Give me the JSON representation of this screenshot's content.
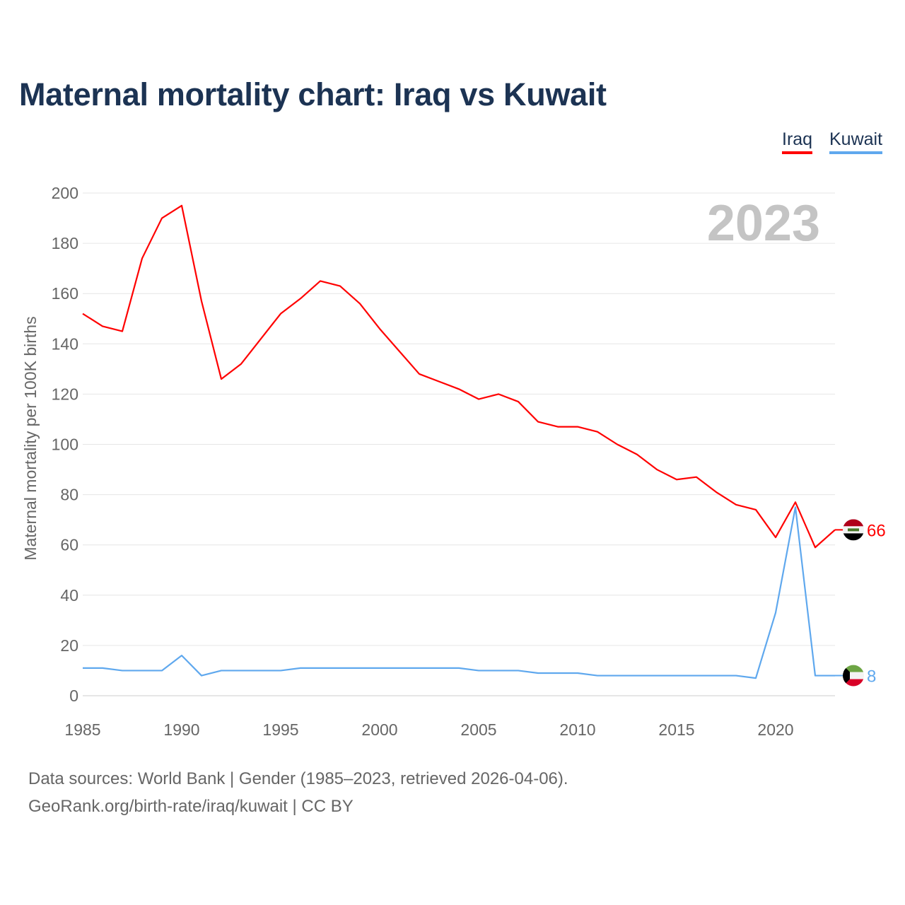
{
  "title": "Maternal mortality chart: Iraq vs Kuwait",
  "footer": {
    "source": "Data sources: World Bank | Gender (1985–2023, retrieved 2026-04-06).",
    "credit": "GeoRank.org/birth-rate/iraq/kuwait | CC BY"
  },
  "chart_data": {
    "type": "line",
    "title": "Maternal mortality chart: Iraq vs Kuwait",
    "year_label": "2023",
    "xlabel": "",
    "ylabel": "Maternal mortality per 100K births",
    "xlim": [
      1985,
      2023
    ],
    "ylim": [
      0,
      200
    ],
    "xticks": [
      "1985",
      "1990",
      "1995",
      "2000",
      "2005",
      "2010",
      "2015",
      "2020"
    ],
    "yticks": [
      "0",
      "20",
      "40",
      "60",
      "80",
      "100",
      "120",
      "140",
      "160",
      "180",
      "200"
    ],
    "grid": true,
    "legend_position": "top-right",
    "x": [
      1985,
      1986,
      1987,
      1988,
      1989,
      1990,
      1991,
      1992,
      1993,
      1994,
      1995,
      1996,
      1997,
      1998,
      1999,
      2000,
      2001,
      2002,
      2003,
      2004,
      2005,
      2006,
      2007,
      2008,
      2009,
      2010,
      2011,
      2012,
      2013,
      2014,
      2015,
      2016,
      2017,
      2018,
      2019,
      2020,
      2021,
      2022,
      2023
    ],
    "series": [
      {
        "name": "Iraq",
        "color": "#ff0000",
        "end_label": "66",
        "flag": "iraq-flag",
        "values": [
          152,
          147,
          145,
          174,
          190,
          195,
          157,
          126,
          132,
          142,
          152,
          158,
          165,
          163,
          156,
          146,
          137,
          128,
          125,
          122,
          118,
          120,
          117,
          109,
          107,
          107,
          105,
          100,
          96,
          90,
          86,
          87,
          81,
          76,
          74,
          63,
          77,
          59,
          66
        ]
      },
      {
        "name": "Kuwait",
        "color": "#5fa8ee",
        "end_label": "8",
        "flag": "kuwait-flag",
        "values": [
          11,
          11,
          10,
          10,
          10,
          16,
          8,
          10,
          10,
          10,
          10,
          11,
          11,
          11,
          11,
          11,
          11,
          11,
          11,
          11,
          10,
          10,
          10,
          9,
          9,
          9,
          8,
          8,
          8,
          8,
          8,
          8,
          8,
          8,
          7,
          33,
          75,
          8,
          8
        ]
      }
    ]
  }
}
